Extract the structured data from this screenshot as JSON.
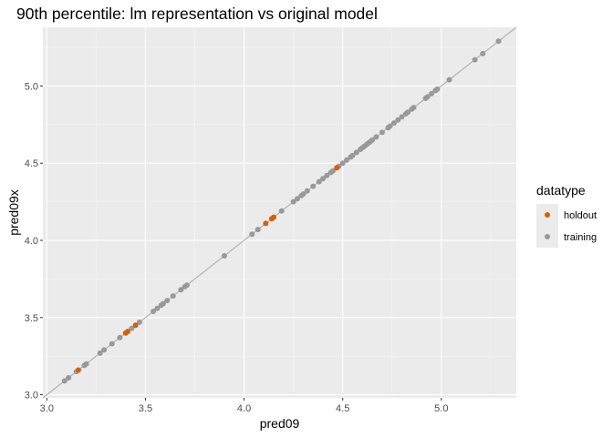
{
  "chart_data": {
    "type": "scatter",
    "title": "90th percentile: lm representation vs original model",
    "xlabel": "pred09",
    "ylabel": "pred09x",
    "xlim": [
      2.98,
      5.38
    ],
    "ylim": [
      2.98,
      5.38
    ],
    "x_ticks": [
      "3.0",
      "3.5",
      "4.0",
      "4.5",
      "5.0"
    ],
    "y_ticks": [
      "3.0",
      "3.5",
      "4.0",
      "4.5",
      "5.0"
    ],
    "grid": true,
    "reference_line": {
      "slope": 1,
      "intercept": 0
    },
    "legend": {
      "title": "datatype",
      "position": "right",
      "entries": [
        {
          "label": "holdout",
          "color": "#d95f02"
        },
        {
          "label": "training",
          "color": "#999999"
        }
      ]
    },
    "series": [
      {
        "name": "training",
        "color": "#999999",
        "points": [
          [
            3.09,
            3.09
          ],
          [
            3.11,
            3.11
          ],
          [
            3.15,
            3.15
          ],
          [
            3.19,
            3.19
          ],
          [
            3.2,
            3.2
          ],
          [
            3.27,
            3.27
          ],
          [
            3.29,
            3.29
          ],
          [
            3.33,
            3.33
          ],
          [
            3.37,
            3.37
          ],
          [
            3.43,
            3.43
          ],
          [
            3.47,
            3.47
          ],
          [
            3.54,
            3.54
          ],
          [
            3.56,
            3.56
          ],
          [
            3.58,
            3.58
          ],
          [
            3.59,
            3.59
          ],
          [
            3.61,
            3.61
          ],
          [
            3.64,
            3.64
          ],
          [
            3.68,
            3.68
          ],
          [
            3.7,
            3.7
          ],
          [
            3.71,
            3.71
          ],
          [
            3.9,
            3.9
          ],
          [
            4.04,
            4.04
          ],
          [
            4.07,
            4.07
          ],
          [
            4.19,
            4.19
          ],
          [
            4.25,
            4.25
          ],
          [
            4.27,
            4.27
          ],
          [
            4.29,
            4.29
          ],
          [
            4.3,
            4.3
          ],
          [
            4.32,
            4.32
          ],
          [
            4.35,
            4.35
          ],
          [
            4.38,
            4.38
          ],
          [
            4.4,
            4.4
          ],
          [
            4.42,
            4.42
          ],
          [
            4.44,
            4.44
          ],
          [
            4.45,
            4.45
          ],
          [
            4.48,
            4.48
          ],
          [
            4.5,
            4.5
          ],
          [
            4.52,
            4.52
          ],
          [
            4.54,
            4.54
          ],
          [
            4.55,
            4.55
          ],
          [
            4.57,
            4.57
          ],
          [
            4.59,
            4.59
          ],
          [
            4.6,
            4.6
          ],
          [
            4.61,
            4.61
          ],
          [
            4.62,
            4.62
          ],
          [
            4.63,
            4.63
          ],
          [
            4.64,
            4.64
          ],
          [
            4.65,
            4.65
          ],
          [
            4.67,
            4.67
          ],
          [
            4.7,
            4.7
          ],
          [
            4.73,
            4.73
          ],
          [
            4.74,
            4.74
          ],
          [
            4.76,
            4.76
          ],
          [
            4.78,
            4.78
          ],
          [
            4.8,
            4.8
          ],
          [
            4.82,
            4.82
          ],
          [
            4.83,
            4.83
          ],
          [
            4.85,
            4.85
          ],
          [
            4.86,
            4.86
          ],
          [
            4.92,
            4.92
          ],
          [
            4.93,
            4.93
          ],
          [
            4.95,
            4.95
          ],
          [
            4.97,
            4.97
          ],
          [
            4.98,
            4.98
          ],
          [
            5.04,
            5.04
          ],
          [
            5.17,
            5.17
          ],
          [
            5.21,
            5.21
          ],
          [
            5.29,
            5.29
          ]
        ]
      },
      {
        "name": "holdout",
        "color": "#d95f02",
        "points": [
          [
            3.16,
            3.16
          ],
          [
            3.4,
            3.4
          ],
          [
            3.41,
            3.41
          ],
          [
            3.45,
            3.45
          ],
          [
            4.11,
            4.11
          ],
          [
            4.14,
            4.14
          ],
          [
            4.15,
            4.15
          ],
          [
            4.47,
            4.47
          ]
        ]
      }
    ]
  }
}
